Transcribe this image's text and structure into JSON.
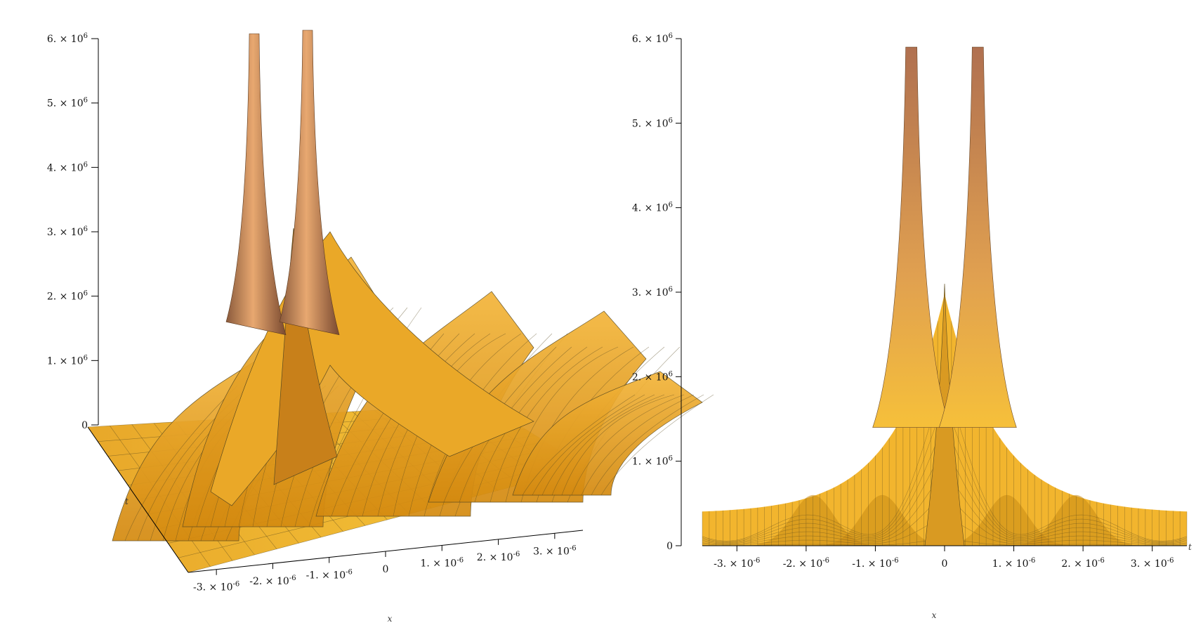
{
  "chart_data": [
    {
      "type": "surface3d",
      "view": "perspective",
      "xlabel": "x",
      "ylabel": "t",
      "zlabel": "",
      "xlim": [
        -3.5e-06,
        3.5e-06
      ],
      "zlim": [
        0,
        6000000
      ],
      "x_ticks": [
        {
          "value": -3e-06,
          "label": "-3. × 10^-6"
        },
        {
          "value": -2e-06,
          "label": "-2. × 10^-6"
        },
        {
          "value": -1e-06,
          "label": "-1. × 10^-6"
        },
        {
          "value": 0,
          "label": "0"
        },
        {
          "value": 1e-06,
          "label": "1. × 10^-6"
        },
        {
          "value": 2e-06,
          "label": "2. × 10^-6"
        },
        {
          "value": 3e-06,
          "label": "3. × 10^-6"
        }
      ],
      "z_ticks": [
        {
          "value": 0,
          "label": "0"
        },
        {
          "value": 1000000,
          "label": "1. × 10^6"
        },
        {
          "value": 2000000,
          "label": "2. × 10^6"
        },
        {
          "value": 3000000,
          "label": "3. × 10^6"
        },
        {
          "value": 4000000,
          "label": "4. × 10^6"
        },
        {
          "value": 5000000,
          "label": "5. × 10^6"
        },
        {
          "value": 6000000,
          "label": "6. × 10^6"
        }
      ],
      "surface_color": "#f0b428",
      "mesh_color": "#5a4a20"
    },
    {
      "type": "surface3d",
      "view": "front (x–z projection)",
      "xlabel": "x",
      "ylabel": "t",
      "zlabel": "",
      "xlim": [
        -3.5e-06,
        3.5e-06
      ],
      "zlim": [
        0,
        6000000
      ],
      "x_ticks": [
        {
          "value": -3e-06,
          "label": "-3. × 10^-6"
        },
        {
          "value": -2e-06,
          "label": "-2. × 10^-6"
        },
        {
          "value": -1e-06,
          "label": "-1. × 10^-6"
        },
        {
          "value": 0,
          "label": "0"
        },
        {
          "value": 1e-06,
          "label": "1. × 10^-6"
        },
        {
          "value": 2e-06,
          "label": "2. × 10^-6"
        },
        {
          "value": 3e-06,
          "label": "3. × 10^-6"
        }
      ],
      "z_ticks": [
        {
          "value": 0,
          "label": "0"
        },
        {
          "value": 1000000,
          "label": "1. × 10^6"
        },
        {
          "value": 2000000,
          "label": "2. × 10^6"
        },
        {
          "value": 3000000,
          "label": "3. × 10^6"
        },
        {
          "value": 4000000,
          "label": "4. × 10^6"
        },
        {
          "value": 5000000,
          "label": "5. × 10^6"
        },
        {
          "value": 6000000,
          "label": "6. × 10^6"
        }
      ],
      "surface_color": "#f0b428",
      "mesh_color": "#5a4a20"
    }
  ]
}
